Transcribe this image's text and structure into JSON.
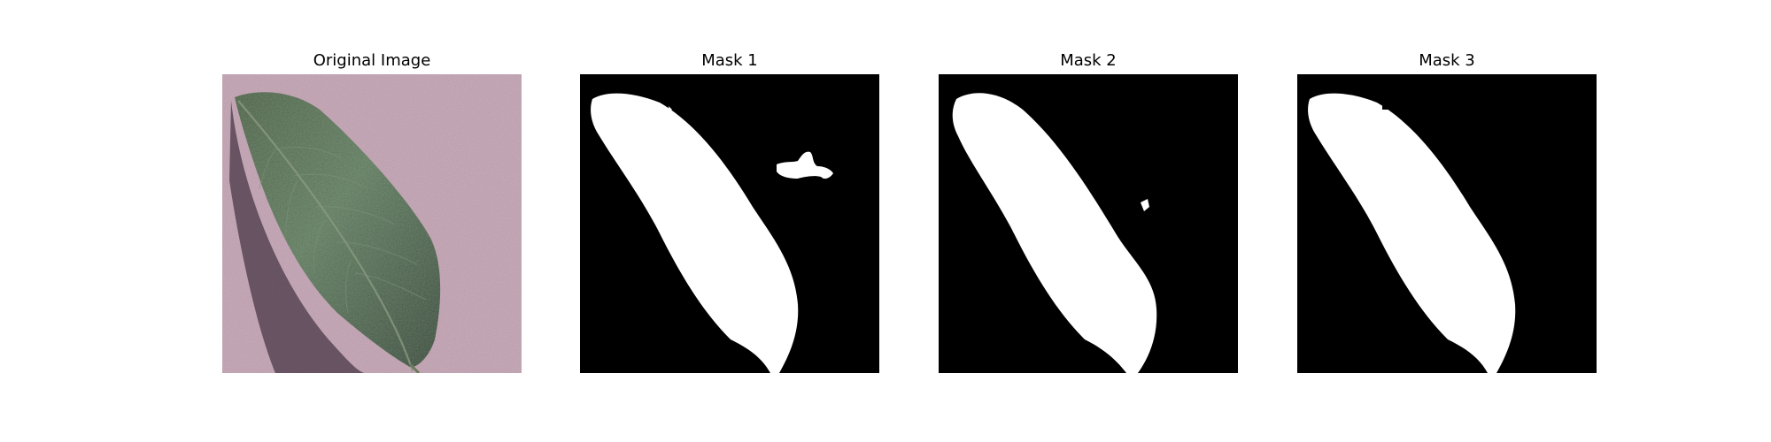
{
  "figure": {
    "panels": [
      {
        "title": "Original Image",
        "kind": "photo",
        "subject": "leaf-photo"
      },
      {
        "title": "Mask 1",
        "kind": "mask",
        "foreground": "#ffffff",
        "background": "#000000"
      },
      {
        "title": "Mask 2",
        "kind": "mask",
        "foreground": "#ffffff",
        "background": "#000000"
      },
      {
        "title": "Mask 3",
        "kind": "mask",
        "foreground": "#ffffff",
        "background": "#000000"
      }
    ]
  }
}
